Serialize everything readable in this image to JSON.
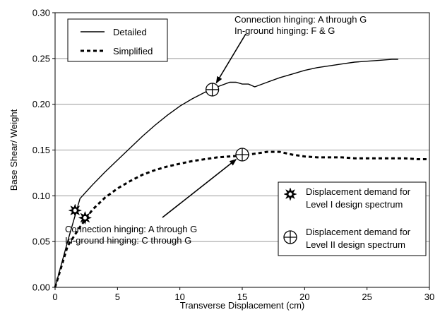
{
  "chart_data": {
    "type": "line",
    "title": "",
    "xlabel": "Transverse Displacement (cm)",
    "ylabel": "Base Shear/ Weight",
    "xlim": [
      0,
      30
    ],
    "ylim": [
      0,
      0.3
    ],
    "x_ticks": [
      0,
      5,
      10,
      15,
      20,
      25,
      30
    ],
    "y_ticks": [
      0.0,
      0.05,
      0.1,
      0.15,
      0.2,
      0.25,
      0.3
    ],
    "x_tick_labels": [
      "0",
      "5",
      "10",
      "15",
      "20",
      "25",
      "30"
    ],
    "y_tick_labels": [
      "0.00",
      "0.05",
      "0.10",
      "0.15",
      "0.20",
      "0.25",
      "0.30"
    ],
    "grid": "horizontal",
    "legend_placement": "top-left",
    "series": [
      {
        "name": "Detailed",
        "style": "solid",
        "color": "#000000",
        "x": [
          0,
          1,
          2,
          3,
          4,
          5,
          6,
          7,
          8,
          9,
          10,
          11,
          12,
          13,
          14,
          14.5,
          15,
          15.5,
          16,
          17,
          18,
          19,
          20,
          21,
          22,
          23,
          24,
          25,
          26,
          27,
          27.5
        ],
        "y": [
          0,
          0.05,
          0.097,
          0.112,
          0.126,
          0.139,
          0.152,
          0.165,
          0.177,
          0.188,
          0.198,
          0.206,
          0.213,
          0.219,
          0.224,
          0.224,
          0.222,
          0.222,
          0.219,
          0.224,
          0.229,
          0.233,
          0.237,
          0.24,
          0.242,
          0.244,
          0.246,
          0.247,
          0.248,
          0.249,
          0.249
        ]
      },
      {
        "name": "Simplified",
        "style": "dashed",
        "color": "#000000",
        "x": [
          0,
          1,
          2,
          3,
          4,
          5,
          6,
          7,
          8,
          9,
          10,
          11,
          12,
          13,
          14,
          15,
          16,
          17,
          18,
          19,
          20,
          21,
          22,
          23,
          24,
          25,
          26,
          27,
          28,
          29,
          30
        ],
        "y": [
          0,
          0.045,
          0.066,
          0.085,
          0.098,
          0.108,
          0.116,
          0.123,
          0.128,
          0.132,
          0.135,
          0.138,
          0.14,
          0.142,
          0.143,
          0.144,
          0.146,
          0.148,
          0.148,
          0.145,
          0.143,
          0.142,
          0.142,
          0.142,
          0.141,
          0.141,
          0.141,
          0.141,
          0.141,
          0.14,
          0.14
        ]
      }
    ],
    "markers": [
      {
        "kind": "star",
        "level": "Level I",
        "x": 1.6,
        "y": 0.084
      },
      {
        "kind": "star",
        "level": "Level I",
        "x": 2.4,
        "y": 0.076
      },
      {
        "kind": "circle-cross",
        "level": "Level II",
        "x": 12.6,
        "y": 0.216
      },
      {
        "kind": "circle-cross",
        "level": "Level II",
        "x": 15.0,
        "y": 0.145
      }
    ],
    "annotations": [
      {
        "lines": [
          "Connection hinging: A through G",
          "In-ground hinging: F & G"
        ],
        "arrow_to": {
          "x": 12.6,
          "y": 0.216
        }
      },
      {
        "lines": [
          "Connection hinging: A through G",
          "In-ground hinging: C through G"
        ],
        "arrow_to": {
          "x": 15.0,
          "y": 0.145
        }
      }
    ],
    "marker_key": [
      {
        "kind": "star",
        "lines": [
          "Displacement demand for",
          "Level I design spectrum"
        ]
      },
      {
        "kind": "circle-cross",
        "lines": [
          "Displacement demand for",
          "Level II design spectrum"
        ]
      }
    ]
  }
}
